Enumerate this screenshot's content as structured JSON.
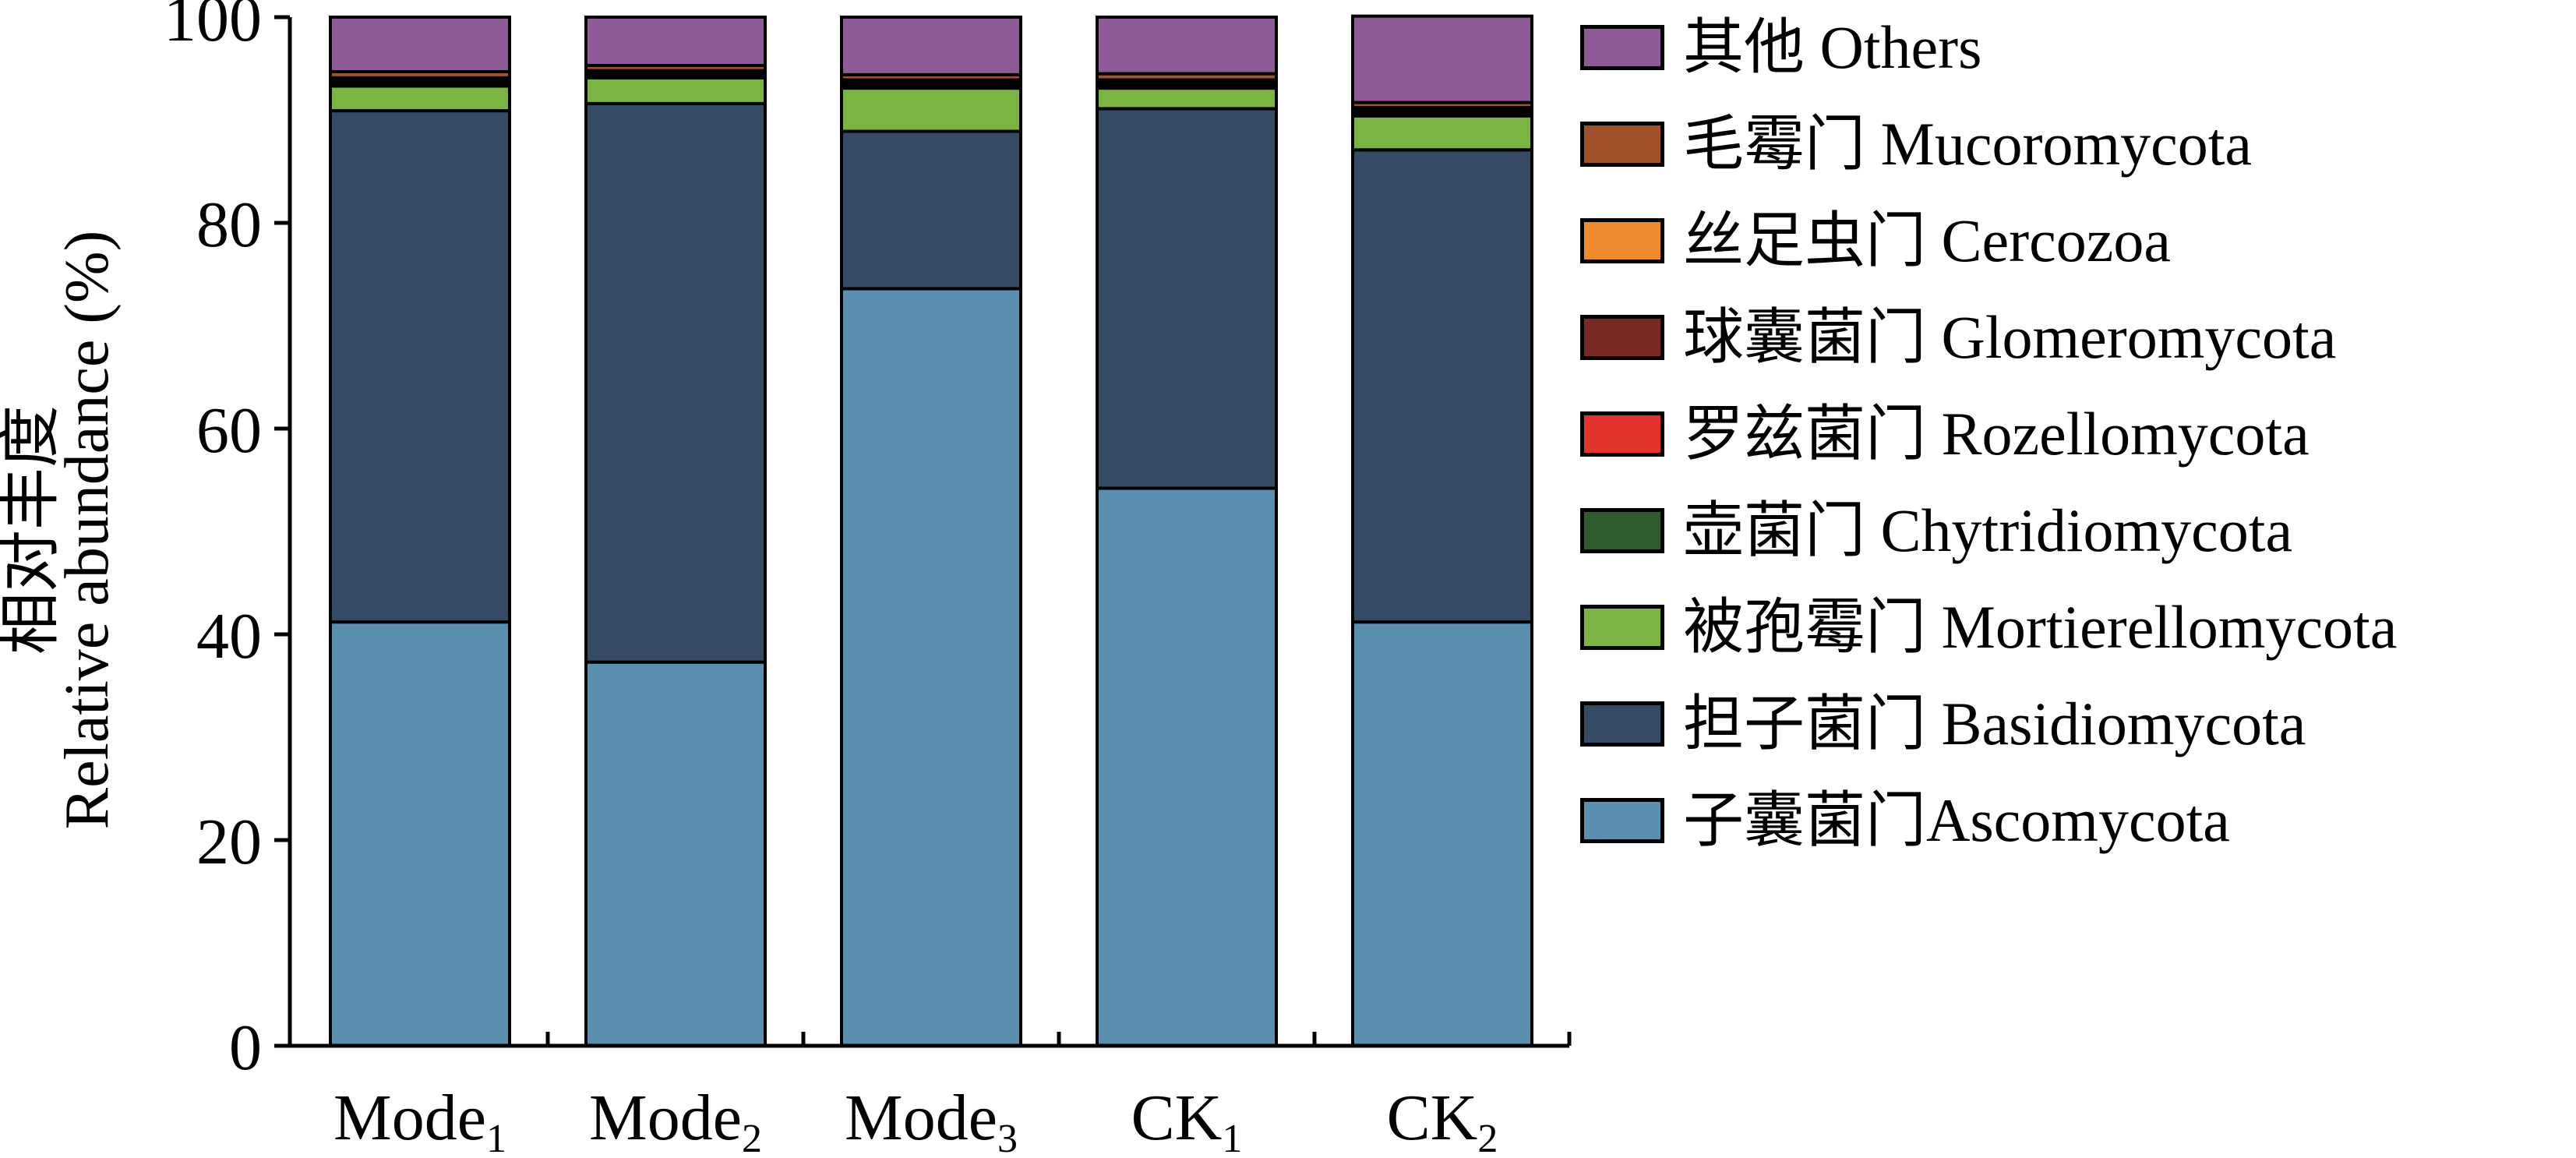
{
  "chart_data": {
    "type": "bar",
    "stacked": true,
    "categories": [
      {
        "name": "Mode",
        "sub": "1"
      },
      {
        "name": "Mode",
        "sub": "2"
      },
      {
        "name": "Mode",
        "sub": "3"
      },
      {
        "name": "CK",
        "sub": "1"
      },
      {
        "name": "CK",
        "sub": "2"
      }
    ],
    "ylabel_cn": "相对丰度",
    "ylabel": "Relative abundance (%)",
    "ylim": [
      0,
      100
    ],
    "yticks": [
      0,
      20,
      40,
      60,
      80,
      100
    ],
    "legend_position": "right",
    "series": [
      {
        "name": "子囊菌门Ascomycota",
        "color": "#5b8fb0",
        "values": [
          41.2,
          37.3,
          73.6,
          54.2,
          41.2
        ]
      },
      {
        "name": "担子菌门 Basidiomycota",
        "color": "#354a64",
        "values": [
          49.7,
          54.3,
          15.3,
          36.9,
          45.9
        ]
      },
      {
        "name": "被孢霉门 Mortierellomycota",
        "color": "#7ab543",
        "values": [
          2.4,
          2.5,
          4.2,
          2.0,
          3.3
        ]
      },
      {
        "name": "壶菌门 Chytridiomycota",
        "color": "#2e5c2e",
        "values": [
          0.3,
          0.3,
          0.3,
          0.3,
          0.3
        ]
      },
      {
        "name": "罗兹菌门 Rozellomycota",
        "color": "#e3342f",
        "values": [
          0.1,
          0.1,
          0.1,
          0.1,
          0.1
        ]
      },
      {
        "name": "球囊菌门 Glomeromycota",
        "color": "#7a2a25",
        "values": [
          0.3,
          0.2,
          0.3,
          0.3,
          0.3
        ]
      },
      {
        "name": "丝足虫门 Cercozoa",
        "color": "#ef8a32",
        "values": [
          0.1,
          0.1,
          0.1,
          0.1,
          0.1
        ]
      },
      {
        "name": "毛霉门 Mucoromycota",
        "color": "#a0522d",
        "values": [
          0.6,
          0.5,
          0.5,
          0.6,
          0.5
        ]
      },
      {
        "name": "其他 Others",
        "color": "#8e5a98",
        "values": [
          5.3,
          4.7,
          5.6,
          5.5,
          8.4
        ]
      }
    ]
  }
}
